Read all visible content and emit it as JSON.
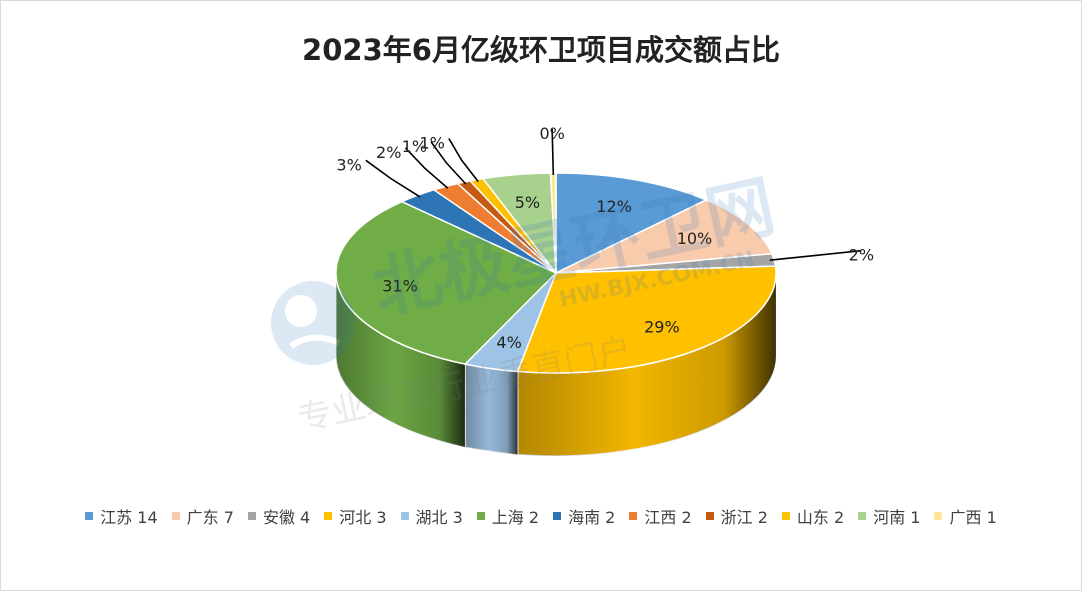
{
  "chart_data": {
    "type": "pie",
    "title": "2023年6月亿级环卫项目成交额占比",
    "categories": [
      "江苏",
      "广东",
      "安徽",
      "河北",
      "湖北",
      "上海",
      "海南",
      "江西",
      "浙江",
      "山东",
      "河南",
      "广西"
    ],
    "counts": [
      14,
      7,
      4,
      3,
      3,
      2,
      2,
      2,
      2,
      2,
      1,
      1
    ],
    "values": [
      12,
      10,
      2,
      29,
      4,
      31,
      3,
      2,
      1,
      1,
      5,
      0
    ],
    "slice_labels": [
      "12%",
      "10%",
      "2%",
      "29%",
      "4%",
      "31%",
      "3%",
      "2%",
      "1%",
      "1%",
      "5%",
      "0%"
    ],
    "legend_labels": [
      "江苏 14",
      "广东 7",
      "安徽 4",
      "河北 3",
      "湖北 3",
      "上海 2",
      "海南 2",
      "江西 2",
      "浙江 2",
      "山东 2",
      "河南 1",
      "广西 1"
    ],
    "colors": [
      "#5b9bd5",
      "#f8cbad",
      "#a5a5a5",
      "#ffc000",
      "#9dc3e6",
      "#70ad47",
      "#2e75b6",
      "#ed7d31",
      "#c55a11",
      "#ffc000",
      "#a9d18e",
      "#ffe699"
    ],
    "legend_position": "bottom",
    "style": "3d-pie"
  },
  "watermark": {
    "logo_text": "北极星环卫网",
    "url_text": "HW.BJX.COM.CN",
    "tagline": "专业环卫行业垂直门户"
  }
}
